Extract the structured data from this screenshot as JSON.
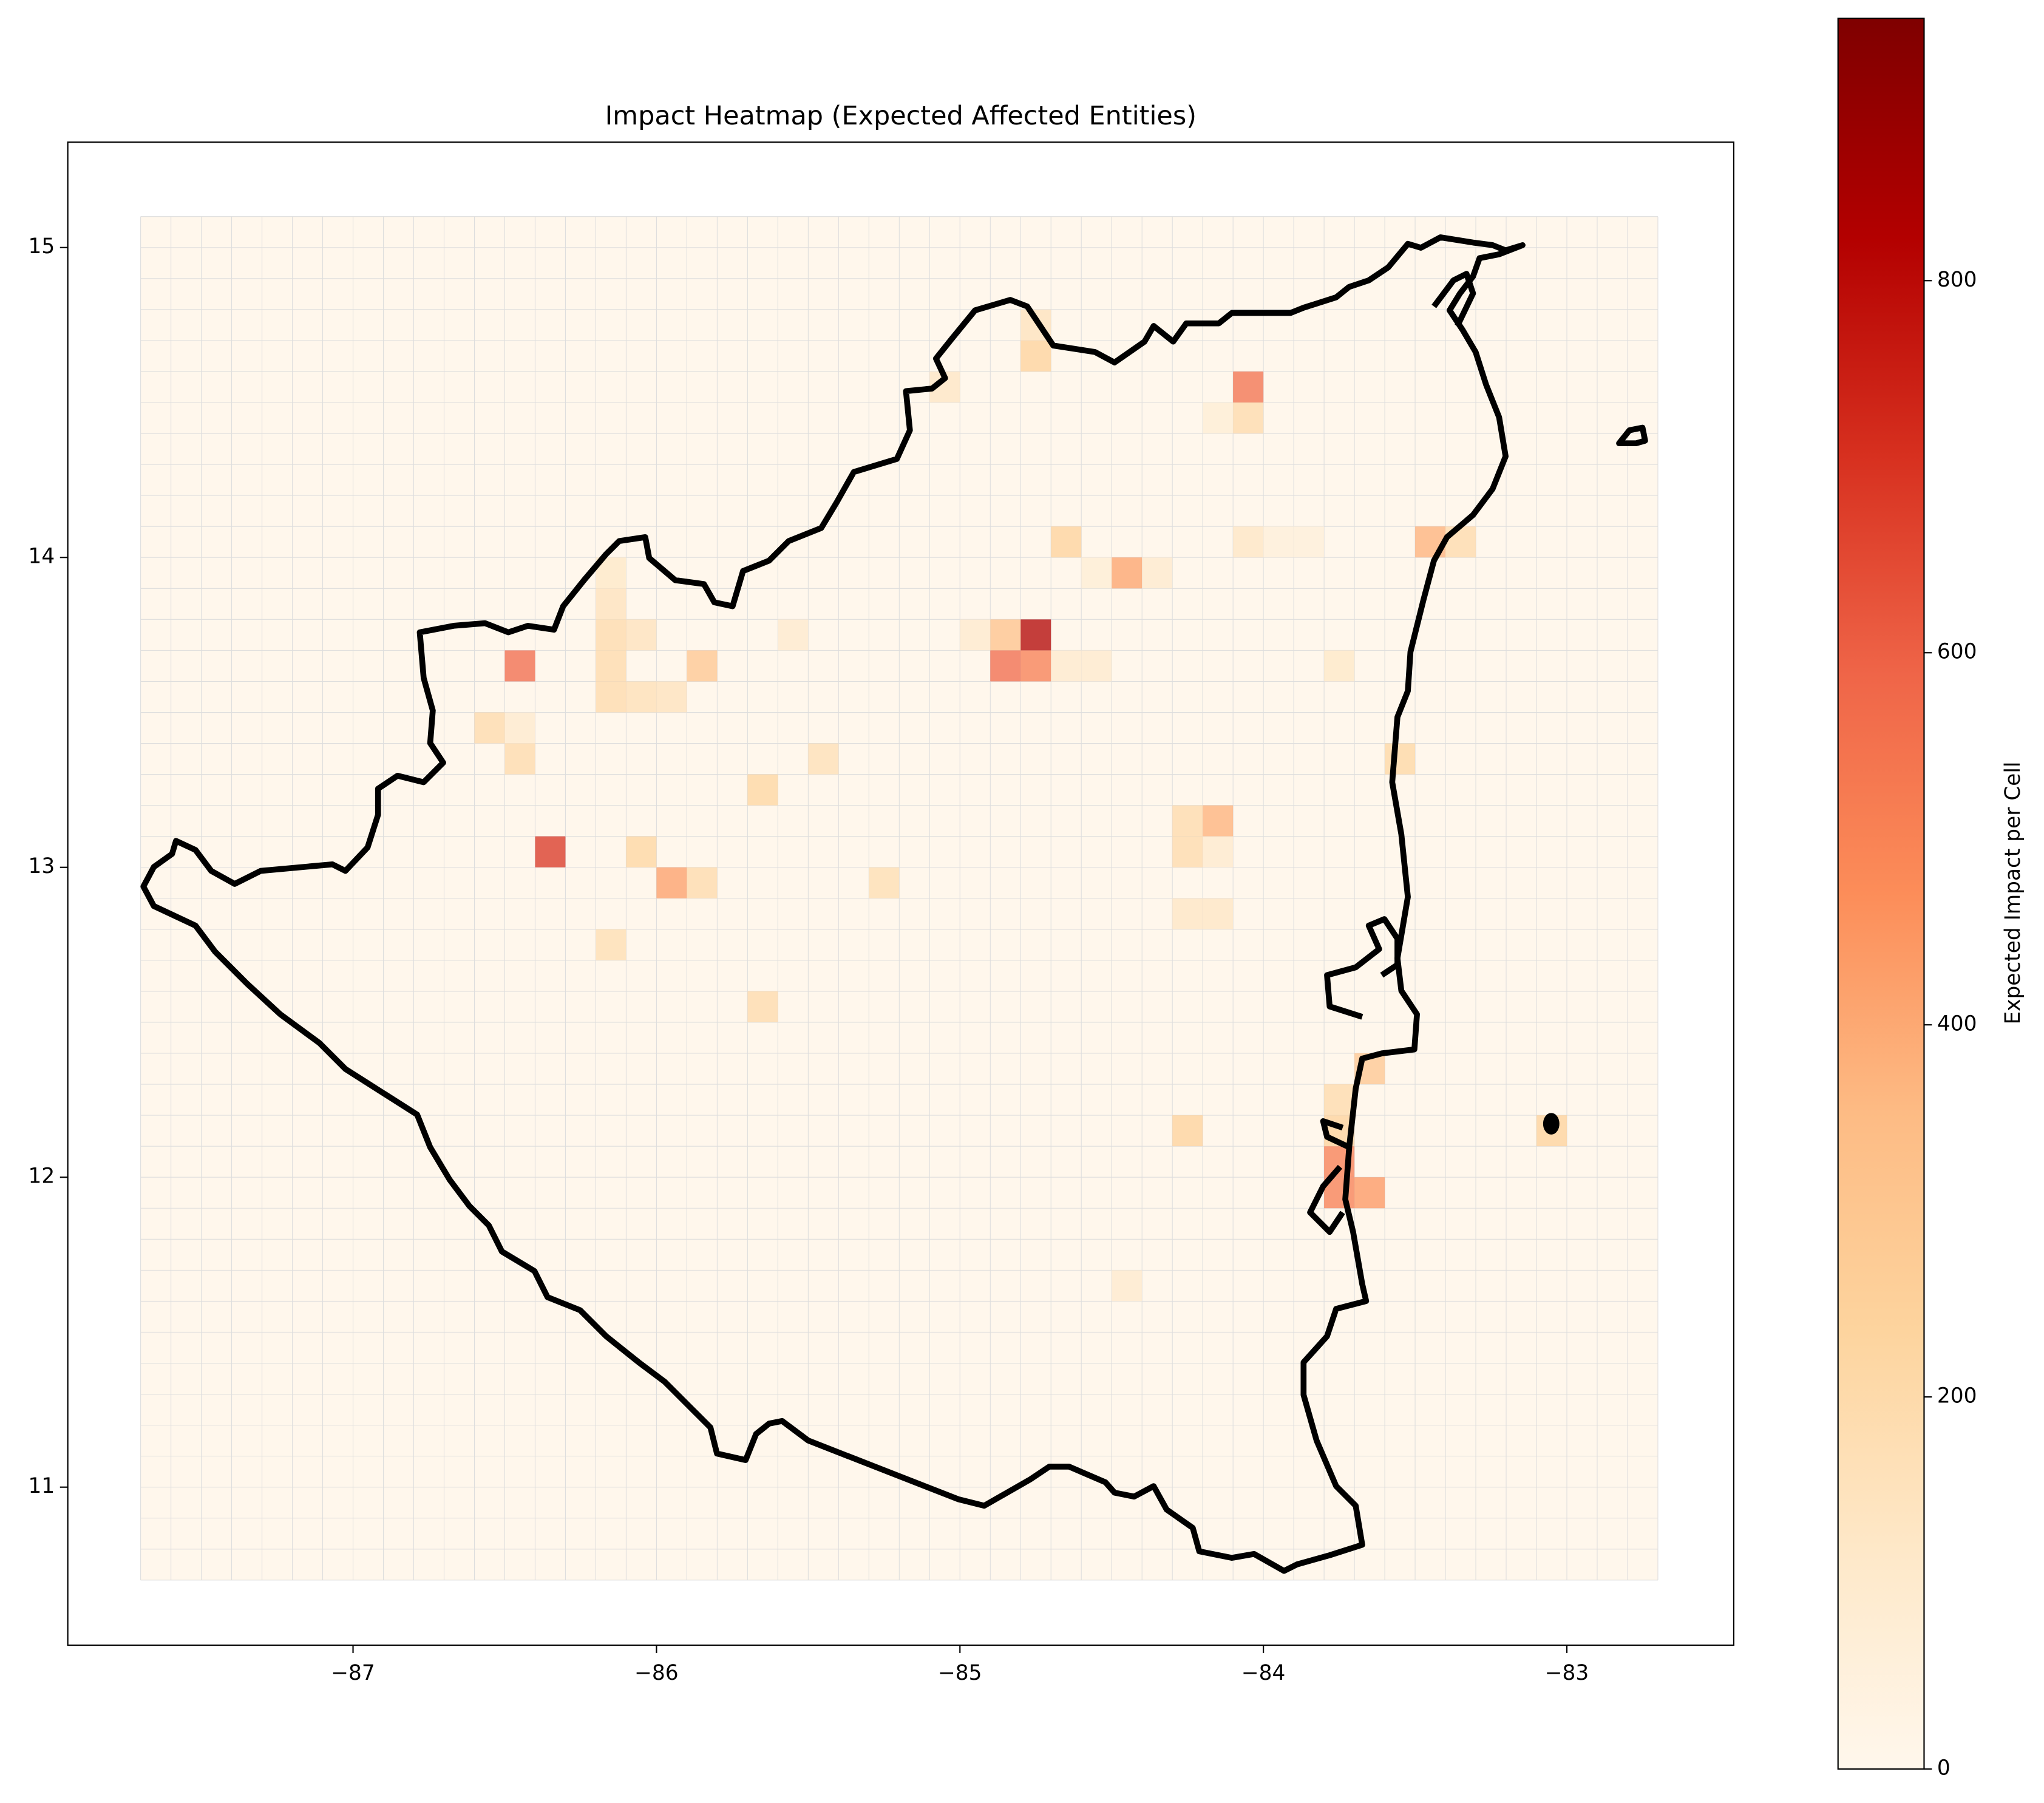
{
  "chart_data": {
    "type": "heatmap",
    "title": "Impact Heatmap (Expected Affected Entities)",
    "colorbar_label": "Expected Impact per Cell",
    "xlim": [
      -87.94,
      -82.45
    ],
    "ylim": [
      10.49,
      15.34
    ],
    "xticks": [
      {
        "value": -87,
        "label": "−87"
      },
      {
        "value": -86,
        "label": "−86"
      },
      {
        "value": -85,
        "label": "−85"
      },
      {
        "value": -84,
        "label": "−84"
      },
      {
        "value": -83,
        "label": "−83"
      }
    ],
    "yticks": [
      11,
      12,
      13,
      14,
      15
    ],
    "clim": [
      0,
      941
    ],
    "cticks": [
      0,
      200,
      400,
      600,
      800
    ],
    "colormap": [
      "#fff7ec",
      "#fee8c8",
      "#fdd49e",
      "#fdbb84",
      "#fc8d59",
      "#ef6548",
      "#d7301f",
      "#b30000",
      "#7f0000"
    ],
    "grid_extent": [
      -87.7,
      -82.7,
      10.7,
      15.1
    ],
    "cell_size": 0.1,
    "x": [
      -84.05,
      -84.05,
      -84.15,
      -84.75,
      -84.85,
      -84.85,
      -84.75,
      -84.95,
      -84.65,
      -84.55,
      -84.45,
      -84.65,
      -84.55,
      -84.35,
      -83.45,
      -83.35,
      -84.05,
      -83.95,
      -83.85,
      -86.45,
      -86.35,
      -85.95,
      -86.05,
      -85.85,
      -86.15,
      -86.15,
      -86.15,
      -86.15,
      -86.15,
      -86.05,
      -86.05,
      -85.95,
      -86.55,
      -86.45,
      -86.45,
      -85.65,
      -85.45,
      -85.55,
      -84.15,
      -84.25,
      -84.25,
      -84.15,
      -84.25,
      -83.75,
      -83.75,
      -83.65,
      -83.75,
      -83.75,
      -83.65,
      -83.05,
      -83.55,
      -85.05,
      -84.75,
      -84.75,
      -85.85,
      -85.65,
      -86.15,
      -85.25,
      -83.75,
      -84.45,
      -84.15,
      -84.25
    ],
    "y": [
      14.55,
      14.45,
      14.45,
      13.75,
      13.75,
      13.65,
      13.65,
      13.75,
      13.65,
      13.65,
      13.95,
      14.05,
      13.95,
      13.95,
      14.05,
      14.05,
      14.05,
      14.05,
      14.05,
      13.65,
      13.05,
      12.95,
      13.05,
      13.65,
      13.75,
      13.85,
      13.95,
      13.65,
      13.55,
      13.75,
      13.55,
      13.55,
      13.45,
      13.35,
      13.45,
      13.25,
      13.35,
      13.75,
      13.15,
      13.15,
      13.05,
      13.05,
      12.15,
      12.05,
      11.95,
      11.95,
      12.15,
      12.25,
      12.35,
      12.15,
      13.35,
      14.55,
      14.65,
      14.75,
      12.95,
      12.55,
      12.75,
      12.95,
      13.65,
      11.65,
      12.85,
      12.85
    ],
    "values": [
      560,
      200,
      80,
      830,
      320,
      580,
      520,
      100,
      100,
      100,
      420,
      250,
      80,
      100,
      380,
      200,
      130,
      60,
      60,
      580,
      700,
      430,
      230,
      300,
      200,
      150,
      120,
      200,
      200,
      150,
      170,
      150,
      200,
      200,
      100,
      230,
      170,
      100,
      380,
      200,
      200,
      100,
      250,
      520,
      520,
      450,
      250,
      200,
      300,
      250,
      220,
      130,
      250,
      150,
      200,
      200,
      180,
      180,
      120,
      100,
      130,
      130
    ]
  }
}
